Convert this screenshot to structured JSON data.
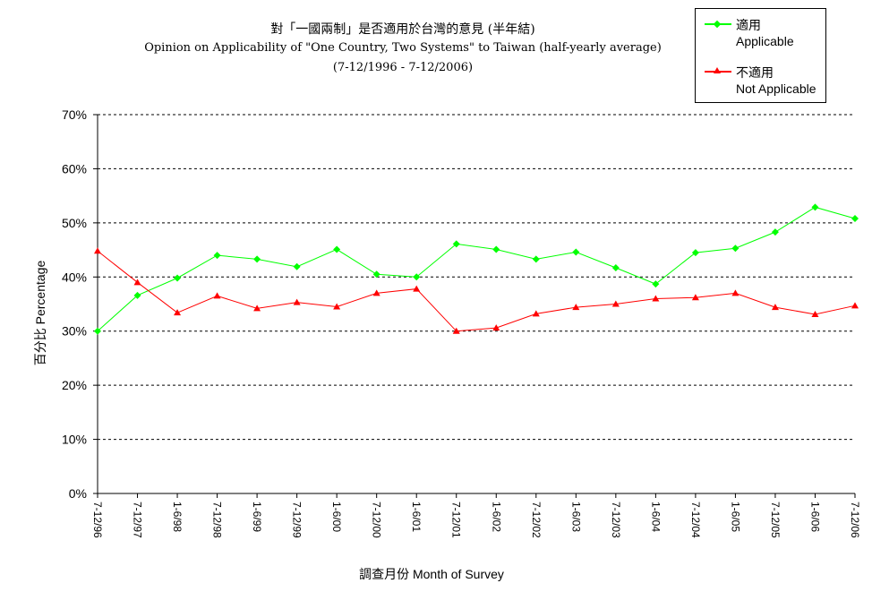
{
  "title": {
    "line1": "對「一國兩制」是否適用於台灣的意見 (半年結)",
    "line2": "Opinion on Applicability of \"One Country, Two Systems\" to Taiwan (half-yearly average)",
    "line3": "(7-12/1996 - 7-12/2006)"
  },
  "legend": {
    "items": [
      {
        "name": "適用",
        "sub": "Applicable",
        "color": "#00ff00"
      },
      {
        "name": "不適用",
        "sub": "Not Applicable",
        "color": "#ff0000"
      }
    ]
  },
  "chart_data": {
    "type": "line",
    "title": "對「一國兩制」是否適用於台灣的意見 (半年結) Opinion on Applicability of \"One Country, Two Systems\" to Taiwan (half-yearly average) (7-12/1996 - 7-12/2006)",
    "xlabel": "調查月份 Month of Survey",
    "ylabel": "百分比 Percentage",
    "ylim": [
      0,
      70
    ],
    "yticks": [
      "0%",
      "10%",
      "20%",
      "30%",
      "40%",
      "50%",
      "60%",
      "70%"
    ],
    "grid": true,
    "legend_position": "top-right",
    "categories": [
      "7-12/96",
      "7-12/97",
      "1-6/98",
      "7-12/98",
      "1-6/99",
      "7-12/99",
      "1-6/00",
      "7-12/00",
      "1-6/01",
      "7-12/01",
      "1-6/02",
      "7-12/02",
      "1-6/03",
      "7-12/03",
      "1-6/04",
      "7-12/04",
      "1-6/05",
      "7-12/05",
      "1-6/06",
      "7-12/06"
    ],
    "series": [
      {
        "name": "適用 Applicable",
        "color": "#00ff00",
        "marker": "diamond",
        "values": [
          30.0,
          36.6,
          39.8,
          44.0,
          43.3,
          41.9,
          45.1,
          40.5,
          40.0,
          46.1,
          45.1,
          43.3,
          44.6,
          41.7,
          38.7,
          44.5,
          45.3,
          48.3,
          52.9,
          50.8
        ]
      },
      {
        "name": "不適用 Not Applicable",
        "color": "#ff0000",
        "marker": "triangle",
        "values": [
          44.8,
          39.0,
          33.4,
          36.5,
          34.2,
          35.3,
          34.5,
          37.0,
          37.8,
          30.0,
          30.6,
          33.2,
          34.4,
          35.0,
          36.0,
          36.2,
          37.0,
          34.4,
          33.1,
          34.7
        ]
      }
    ]
  }
}
